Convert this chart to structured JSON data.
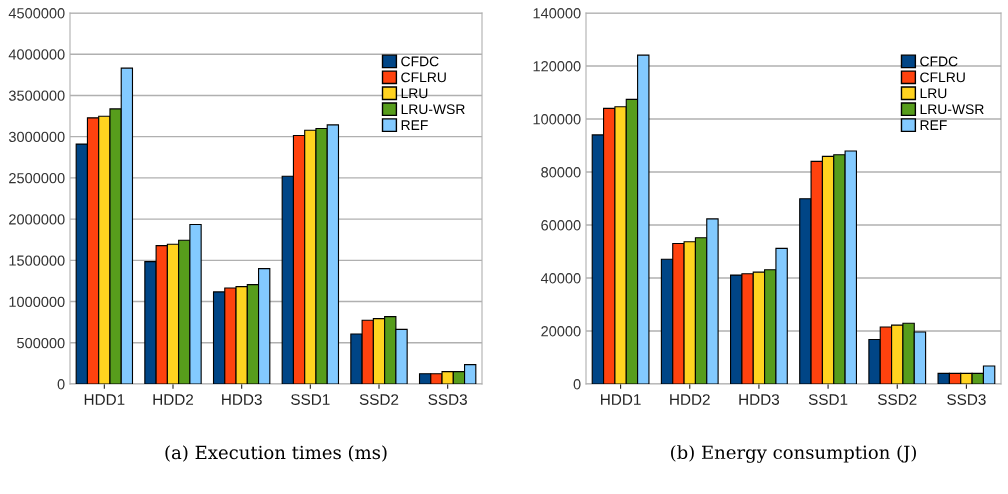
{
  "chart_data": [
    {
      "type": "bar",
      "categories": [
        "HDD1",
        "HDD2",
        "HDD3",
        "SSD1",
        "SSD2",
        "SSD3"
      ],
      "ylim": [
        0,
        4500000
      ],
      "yticks": [
        0,
        500000,
        1000000,
        1500000,
        2000000,
        2500000,
        3000000,
        3500000,
        4000000,
        4500000
      ],
      "grid": "y",
      "legend": "top right",
      "annotations": [
        "(a) Execution times (ms)"
      ],
      "series": [
        {
          "name": "CFDC",
          "color": "#004586",
          "values": [
            2910000,
            1485000,
            1117000,
            2520000,
            607000,
            125000
          ]
        },
        {
          "name": "CFLRU",
          "color": "#ff420e",
          "values": [
            3228000,
            1679000,
            1165000,
            3014000,
            773000,
            125000
          ]
        },
        {
          "name": "LRU",
          "color": "#ffd320",
          "values": [
            3248000,
            1695000,
            1181000,
            3078000,
            793000,
            150000
          ]
        },
        {
          "name": "LRU-WSR",
          "color": "#579d1c",
          "values": [
            3337000,
            1744000,
            1206000,
            3099000,
            817000,
            150000
          ]
        },
        {
          "name": "REF",
          "color": "#83caff",
          "values": [
            3831000,
            1934000,
            1400000,
            3143000,
            663000,
            235000
          ]
        }
      ]
    },
    {
      "type": "bar",
      "categories": [
        "HDD1",
        "HDD2",
        "HDD3",
        "SSD1",
        "SSD2",
        "SSD3"
      ],
      "ylim": [
        0,
        140000
      ],
      "yticks": [
        0,
        20000,
        40000,
        60000,
        80000,
        100000,
        120000,
        140000
      ],
      "grid": "y",
      "legend": "top right",
      "annotations": [
        "(b) Energy consumption (J)"
      ],
      "series": [
        {
          "name": "CFDC",
          "color": "#004586",
          "values": [
            94000,
            47100,
            41100,
            69900,
            16800,
            4000
          ]
        },
        {
          "name": "CFLRU",
          "color": "#ff420e",
          "values": [
            104000,
            53000,
            41600,
            84000,
            21500,
            4000
          ]
        },
        {
          "name": "LRU",
          "color": "#ffd320",
          "values": [
            104600,
            53700,
            42200,
            85900,
            22200,
            4000
          ]
        },
        {
          "name": "LRU-WSR",
          "color": "#579d1c",
          "values": [
            107400,
            55200,
            43100,
            86500,
            22900,
            4000
          ]
        },
        {
          "name": "REF",
          "color": "#83caff",
          "values": [
            124100,
            62300,
            51200,
            87900,
            19600,
            6800
          ]
        }
      ]
    }
  ]
}
